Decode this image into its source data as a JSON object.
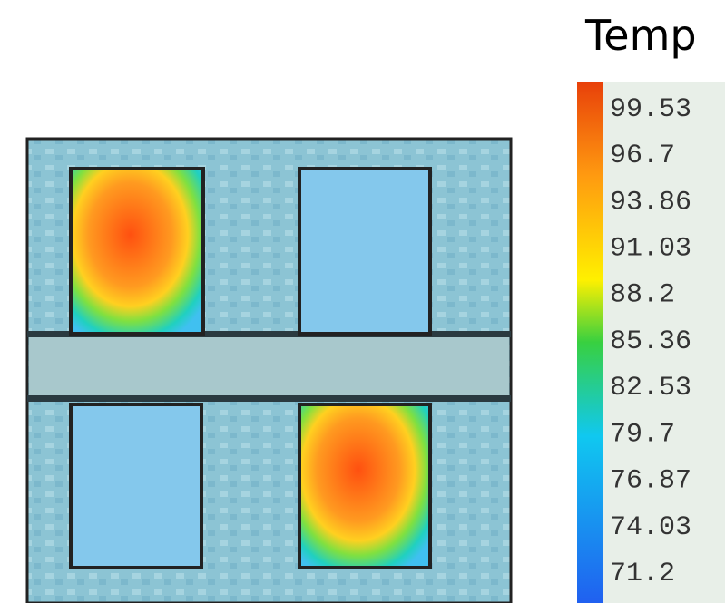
{
  "colorbar": {
    "title": "Temp",
    "ticks": [
      99.53,
      96.7,
      93.86,
      91.03,
      88.2,
      85.36,
      82.53,
      79.7,
      76.87,
      74.03,
      71.2
    ]
  }
}
